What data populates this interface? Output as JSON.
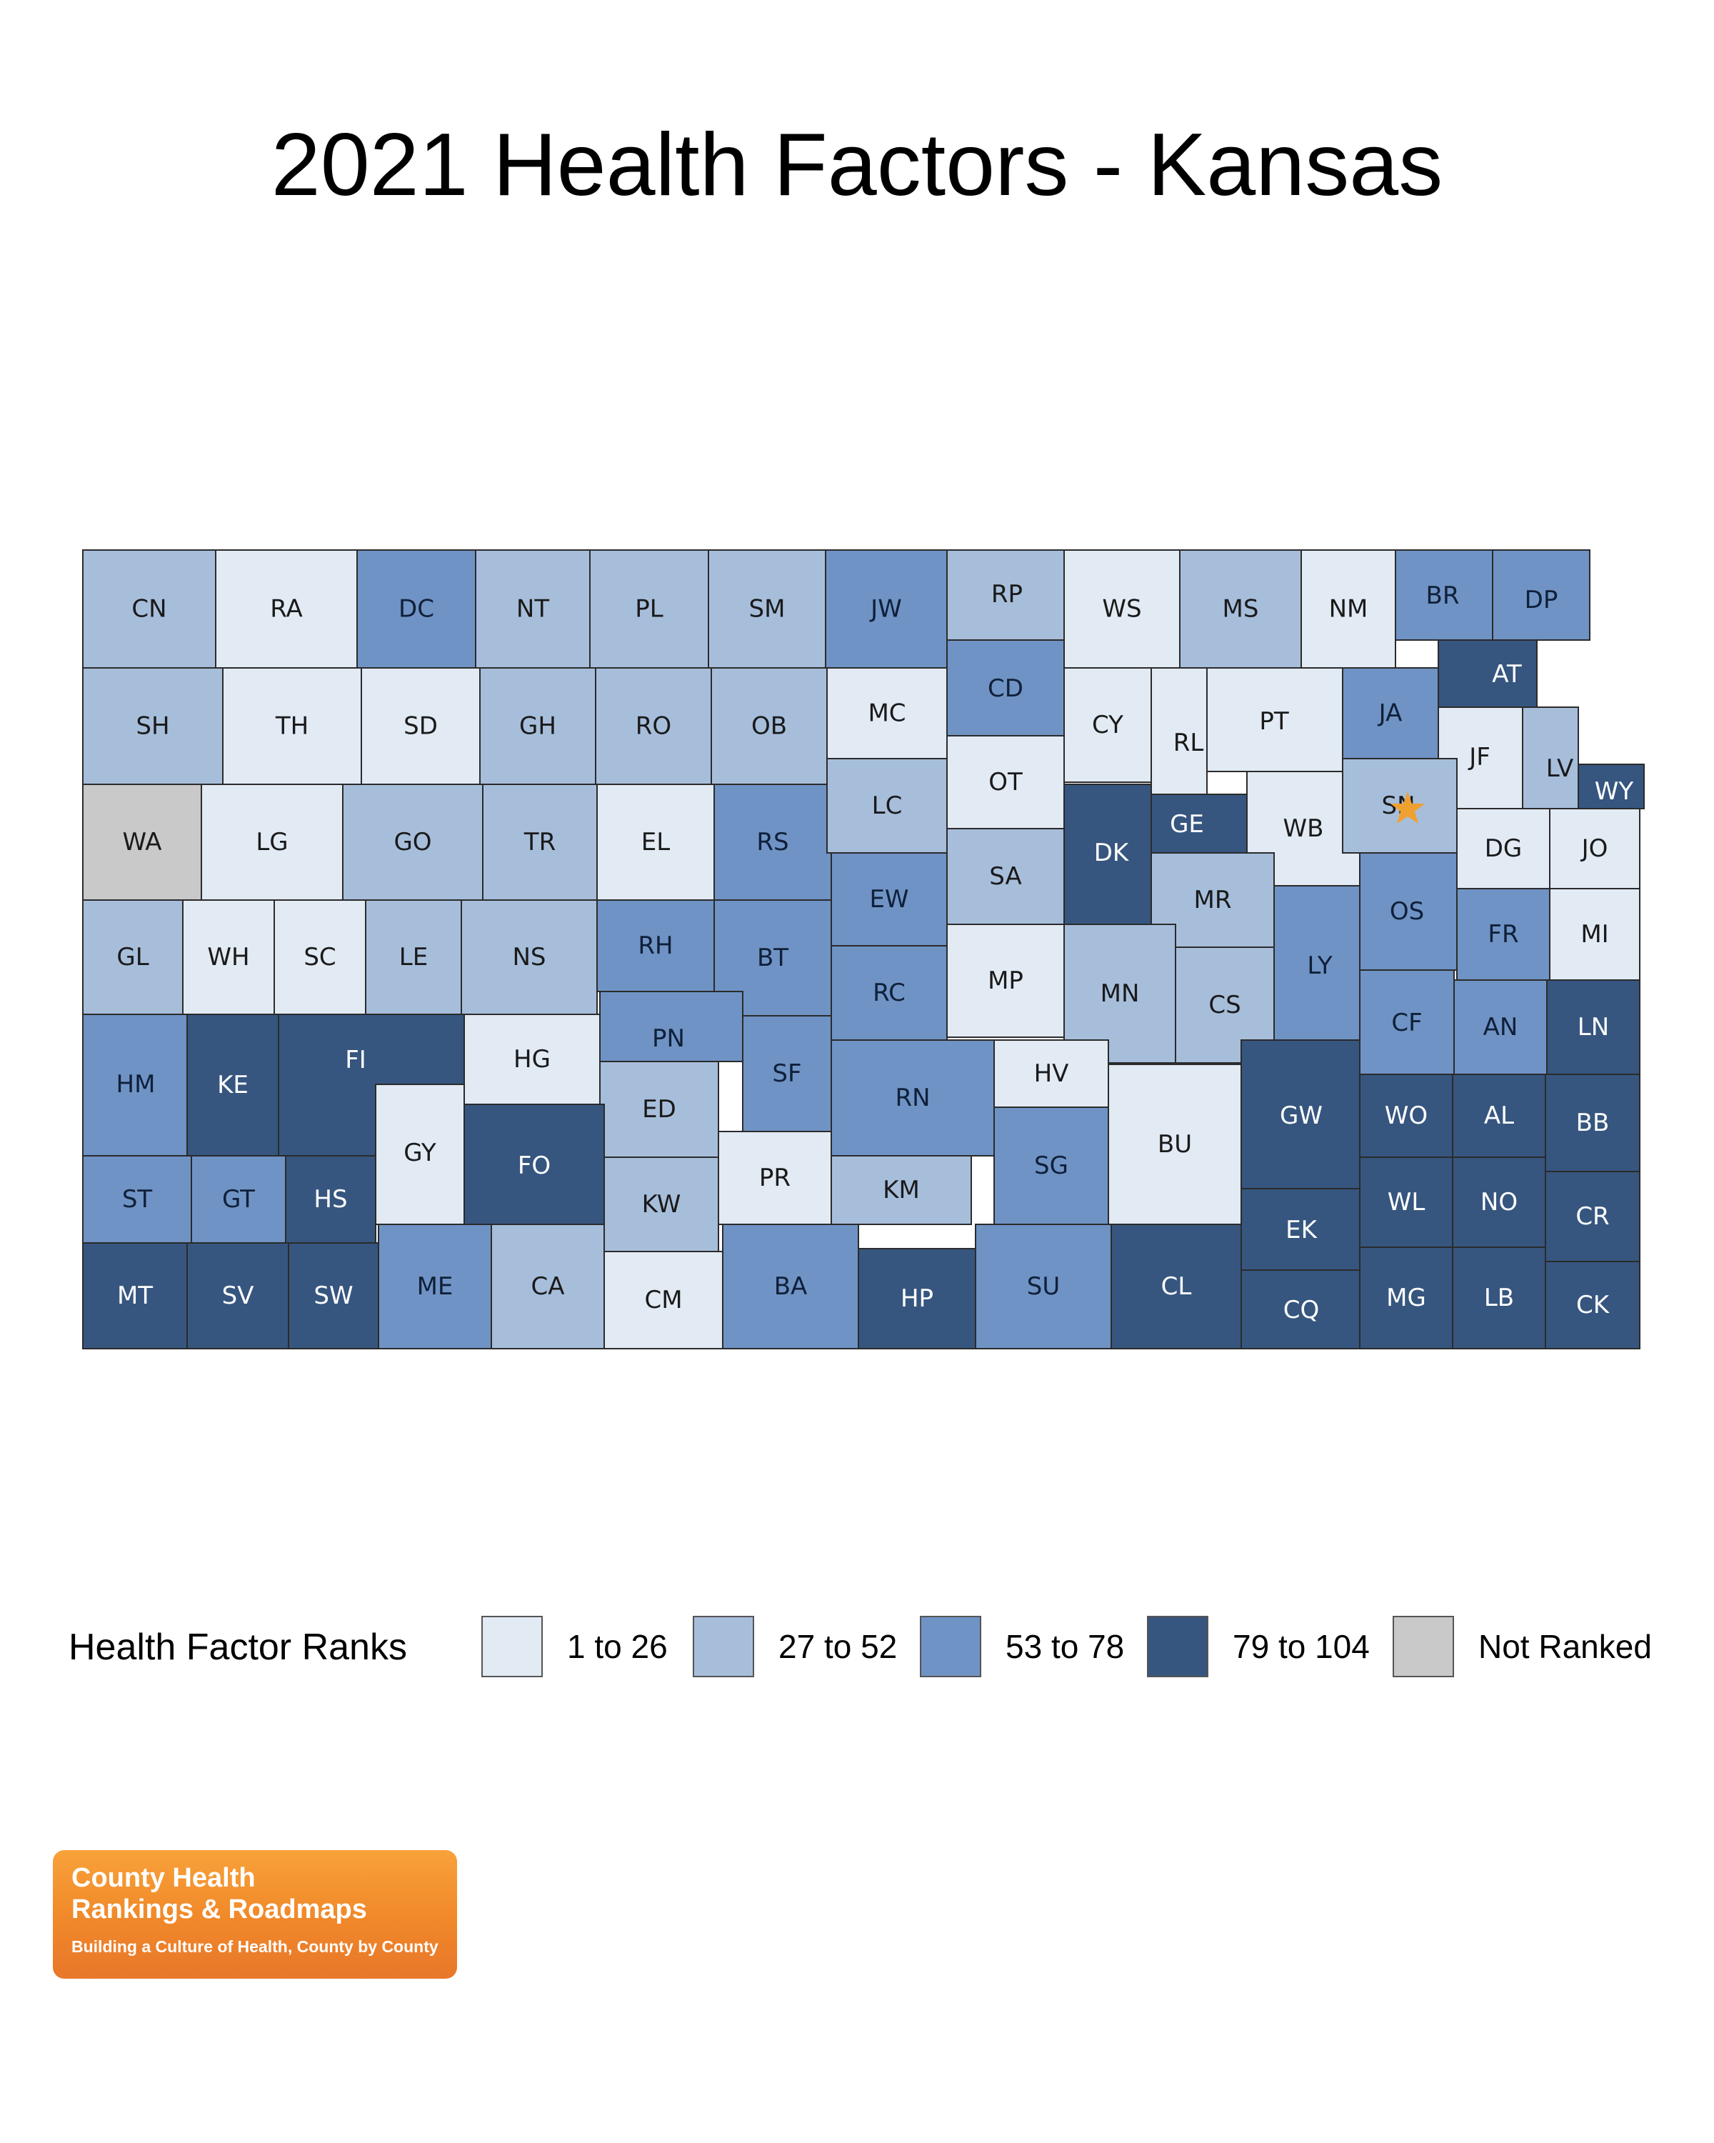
{
  "title": "2021 Health Factors - Kansas",
  "legend": {
    "title": "Health Factor Ranks",
    "items": [
      {
        "label": "1 to 26",
        "color": "#e2eaf4"
      },
      {
        "label": "27 to 52",
        "color": "#a7bedb"
      },
      {
        "label": "53 to 78",
        "color": "#6f93c4"
      },
      {
        "label": "79 to 104",
        "color": "#36567f"
      },
      {
        "label": "Not Ranked",
        "color": "#c9c9c9"
      }
    ]
  },
  "map": {
    "marker": {
      "icon": "star-icon",
      "county": "SN",
      "color": "#f0a030"
    },
    "counties": [
      {
        "code": "CN",
        "group": 1
      },
      {
        "code": "RA",
        "group": 0
      },
      {
        "code": "DC",
        "group": 2
      },
      {
        "code": "NT",
        "group": 1
      },
      {
        "code": "PL",
        "group": 1
      },
      {
        "code": "SM",
        "group": 1
      },
      {
        "code": "JW",
        "group": 2
      },
      {
        "code": "RP",
        "group": 1
      },
      {
        "code": "WS",
        "group": 0
      },
      {
        "code": "MS",
        "group": 1
      },
      {
        "code": "NM",
        "group": 0
      },
      {
        "code": "BR",
        "group": 2
      },
      {
        "code": "DP",
        "group": 2
      },
      {
        "code": "SH",
        "group": 1
      },
      {
        "code": "TH",
        "group": 0
      },
      {
        "code": "SD",
        "group": 0
      },
      {
        "code": "GH",
        "group": 1
      },
      {
        "code": "RO",
        "group": 1
      },
      {
        "code": "OB",
        "group": 1
      },
      {
        "code": "MC",
        "group": 0
      },
      {
        "code": "CD",
        "group": 2
      },
      {
        "code": "OT",
        "group": 0
      },
      {
        "code": "CY",
        "group": 0
      },
      {
        "code": "RL",
        "group": 0
      },
      {
        "code": "PT",
        "group": 0
      },
      {
        "code": "JA",
        "group": 2
      },
      {
        "code": "AT",
        "group": 3
      },
      {
        "code": "JF",
        "group": 0
      },
      {
        "code": "LV",
        "group": 1
      },
      {
        "code": "WY",
        "group": 3
      },
      {
        "code": "WA",
        "group": 4
      },
      {
        "code": "LG",
        "group": 0
      },
      {
        "code": "GO",
        "group": 1
      },
      {
        "code": "TR",
        "group": 1
      },
      {
        "code": "EL",
        "group": 0
      },
      {
        "code": "RS",
        "group": 2
      },
      {
        "code": "LC",
        "group": 1
      },
      {
        "code": "SA",
        "group": 1
      },
      {
        "code": "DK",
        "group": 3
      },
      {
        "code": "GE",
        "group": 3
      },
      {
        "code": "WB",
        "group": 0
      },
      {
        "code": "SN",
        "group": 1
      },
      {
        "code": "DG",
        "group": 0
      },
      {
        "code": "JO",
        "group": 0
      },
      {
        "code": "GL",
        "group": 1
      },
      {
        "code": "WH",
        "group": 0
      },
      {
        "code": "SC",
        "group": 0
      },
      {
        "code": "LE",
        "group": 1
      },
      {
        "code": "NS",
        "group": 1
      },
      {
        "code": "RH",
        "group": 2
      },
      {
        "code": "BT",
        "group": 2
      },
      {
        "code": "EW",
        "group": 2
      },
      {
        "code": "MR",
        "group": 1
      },
      {
        "code": "OS",
        "group": 2
      },
      {
        "code": "FR",
        "group": 2
      },
      {
        "code": "MI",
        "group": 0
      },
      {
        "code": "MP",
        "group": 0
      },
      {
        "code": "MN",
        "group": 1
      },
      {
        "code": "CS",
        "group": 1
      },
      {
        "code": "LY",
        "group": 2
      },
      {
        "code": "RC",
        "group": 2
      },
      {
        "code": "HM",
        "group": 2
      },
      {
        "code": "KE",
        "group": 3
      },
      {
        "code": "FI",
        "group": 3
      },
      {
        "code": "HG",
        "group": 0
      },
      {
        "code": "PN",
        "group": 2
      },
      {
        "code": "SF",
        "group": 2
      },
      {
        "code": "RN",
        "group": 2
      },
      {
        "code": "HV",
        "group": 0
      },
      {
        "code": "CF",
        "group": 2
      },
      {
        "code": "AN",
        "group": 2
      },
      {
        "code": "LN",
        "group": 3
      },
      {
        "code": "GY",
        "group": 0
      },
      {
        "code": "ED",
        "group": 1
      },
      {
        "code": "FO",
        "group": 3
      },
      {
        "code": "BU",
        "group": 0
      },
      {
        "code": "GW",
        "group": 3
      },
      {
        "code": "WO",
        "group": 3
      },
      {
        "code": "AL",
        "group": 3
      },
      {
        "code": "BB",
        "group": 3
      },
      {
        "code": "ST",
        "group": 2
      },
      {
        "code": "GT",
        "group": 2
      },
      {
        "code": "HS",
        "group": 3
      },
      {
        "code": "PR",
        "group": 0
      },
      {
        "code": "KW",
        "group": 1
      },
      {
        "code": "KM",
        "group": 1
      },
      {
        "code": "SG",
        "group": 2
      },
      {
        "code": "EK",
        "group": 3
      },
      {
        "code": "WL",
        "group": 3
      },
      {
        "code": "NO",
        "group": 3
      },
      {
        "code": "CR",
        "group": 3
      },
      {
        "code": "MT",
        "group": 3
      },
      {
        "code": "SV",
        "group": 3
      },
      {
        "code": "SW",
        "group": 3
      },
      {
        "code": "ME",
        "group": 2
      },
      {
        "code": "CA",
        "group": 1
      },
      {
        "code": "CM",
        "group": 0
      },
      {
        "code": "BA",
        "group": 2
      },
      {
        "code": "HP",
        "group": 3
      },
      {
        "code": "SU",
        "group": 2
      },
      {
        "code": "CL",
        "group": 3
      },
      {
        "code": "CQ",
        "group": 3
      },
      {
        "code": "MG",
        "group": 3
      },
      {
        "code": "LB",
        "group": 3
      },
      {
        "code": "CK",
        "group": 3
      }
    ]
  },
  "logo": {
    "line1": "County Health",
    "line2": "Rankings & Roadmaps",
    "tagline": "Building a Culture of Health, County by County"
  }
}
